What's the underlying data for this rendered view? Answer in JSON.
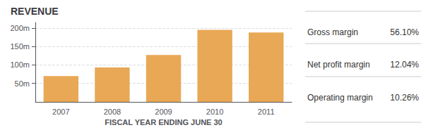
{
  "chart_data": {
    "type": "bar",
    "title": "REVENUE",
    "categories": [
      "2007",
      "2008",
      "2009",
      "2010",
      "2011"
    ],
    "values": [
      70,
      93,
      127,
      195,
      188
    ],
    "color": "#E8A855",
    "xlabel": "FISCAL YEAR ENDING JUNE 30",
    "ylim": [
      0,
      215
    ],
    "yticks": [
      {
        "value": 50,
        "label": "50m"
      },
      {
        "value": 100,
        "label": "100m"
      },
      {
        "value": 150,
        "label": "150m"
      },
      {
        "value": 200,
        "label": "200m"
      }
    ],
    "grid": true,
    "annotations": [
      {
        "label": "Gross margin",
        "value": "56.10%"
      },
      {
        "label": "Net profit margin",
        "value": "12.04%"
      },
      {
        "label": "Operating margin",
        "value": "10.26%"
      }
    ]
  }
}
